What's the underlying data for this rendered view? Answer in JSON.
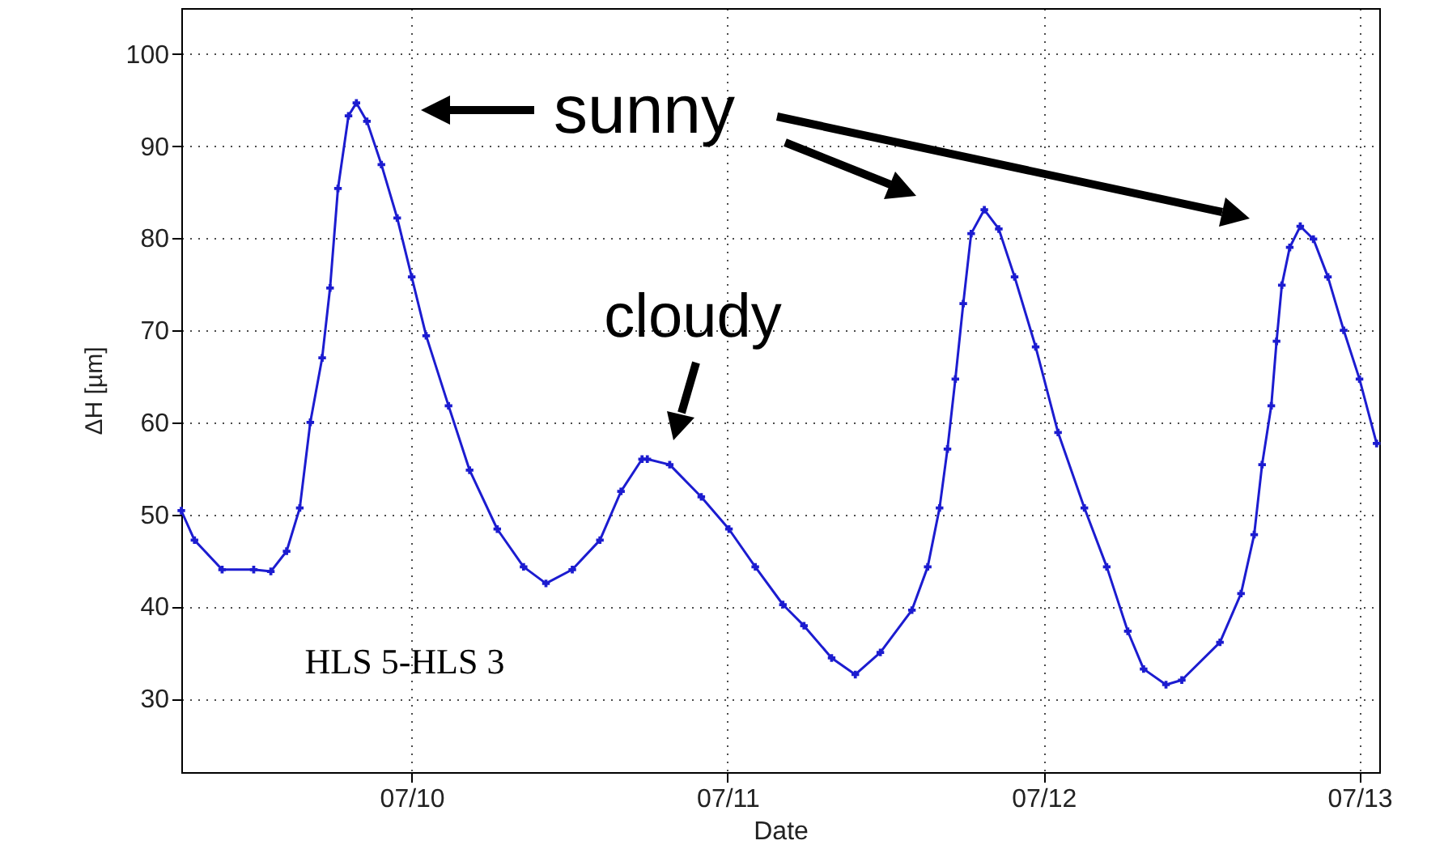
{
  "chart_data": {
    "type": "line",
    "xlabel": "Date",
    "ylabel": "ΔH [µm]",
    "annotations": [
      "sunny",
      "cloudy",
      "HLS 5-HLS 3"
    ],
    "x": [
      "--07-09T06:30",
      "--07-09T07:30",
      "--07-09T09:36",
      "--07-09T12:00",
      "--07-09T13:18",
      "--07-09T14:30",
      "--07-09T15:30",
      "--07-09T16:18",
      "--07-09T17:12",
      "--07-09T17:48",
      "--07-09T18:24",
      "--07-09T19:12",
      "--07-09T19:48",
      "--07-09T20:36",
      "--07-09T21:42",
      "--07-09T22:54",
      "--07-10T00:00",
      "--07-10T01:06",
      "--07-10T02:48",
      "--07-10T04:24",
      "--07-10T06:30",
      "--07-10T08:30",
      "--07-10T10:12",
      "--07-10T12:12",
      "--07-10T14:18",
      "--07-10T15:54",
      "--07-10T17:30",
      "--07-10T17:54",
      "--07-10T19:36",
      "--07-10T22:00",
      "--07-11T00:06",
      "--07-11T02:06",
      "--07-11T04:12",
      "--07-11T05:48",
      "--07-11T07:54",
      "--07-11T09:42",
      "--07-11T11:36",
      "--07-11T14:00",
      "--07-11T15:12",
      "--07-11T16:06",
      "--07-11T16:42",
      "--07-11T17:18",
      "--07-11T17:54",
      "--07-11T18:30",
      "--07-11T19:30",
      "--07-11T20:36",
      "--07-11T21:48",
      "--07-11T23:24",
      "--07-12T01:06",
      "--07-12T03:06",
      "--07-12T04:48",
      "--07-12T06:24",
      "--07-12T07:36",
      "--07-12T09:18",
      "--07-12T10:30",
      "--07-12T13:24",
      "--07-12T15:00",
      "--07-12T16:00",
      "--07-12T16:36",
      "--07-12T17:18",
      "--07-12T17:42",
      "--07-12T18:06",
      "--07-12T18:42",
      "--07-12T19:30",
      "--07-12T20:30",
      "--07-12T21:36",
      "--07-12T22:48",
      "--07-13T00:00",
      "--07-13T01:18"
    ],
    "series": [
      {
        "color": "#1c1cd0",
        "values": [
          50.4,
          47.2,
          44.0,
          44.0,
          43.8,
          46.0,
          50.7,
          60.0,
          67.0,
          74.6,
          85.4,
          93.3,
          94.7,
          92.7,
          88.0,
          82.2,
          75.8,
          69.4,
          61.8,
          54.8,
          48.4,
          44.3,
          42.5,
          44.0,
          47.2,
          52.5,
          56.0,
          56.0,
          55.4,
          51.9,
          48.4,
          44.3,
          40.2,
          37.9,
          34.4,
          32.6,
          35.0,
          39.6,
          44.3,
          50.7,
          57.1,
          64.7,
          72.9,
          80.5,
          83.1,
          81.0,
          75.8,
          68.2,
          58.9,
          50.7,
          44.3,
          37.3,
          33.2,
          31.5,
          32.0,
          36.1,
          41.4,
          47.8,
          55.4,
          61.8,
          68.8,
          74.9,
          79.0,
          81.3,
          79.9,
          75.8,
          70.0,
          64.7,
          57.7
        ]
      }
    ],
    "xlim": [
      "--07-09T06:30",
      "--07-13T01:30"
    ],
    "xticks": [
      {
        "value": "--07-10",
        "label": "07/10"
      },
      {
        "value": "--07-11",
        "label": "07/11"
      },
      {
        "value": "--07-12",
        "label": "07/12"
      },
      {
        "value": "--07-13",
        "label": "07/13"
      }
    ],
    "ylim": [
      22,
      105
    ],
    "yticks": [
      30,
      40,
      50,
      60,
      70,
      80,
      90,
      100
    ],
    "grid": true,
    "marker": "cross",
    "line_style": "solid"
  }
}
